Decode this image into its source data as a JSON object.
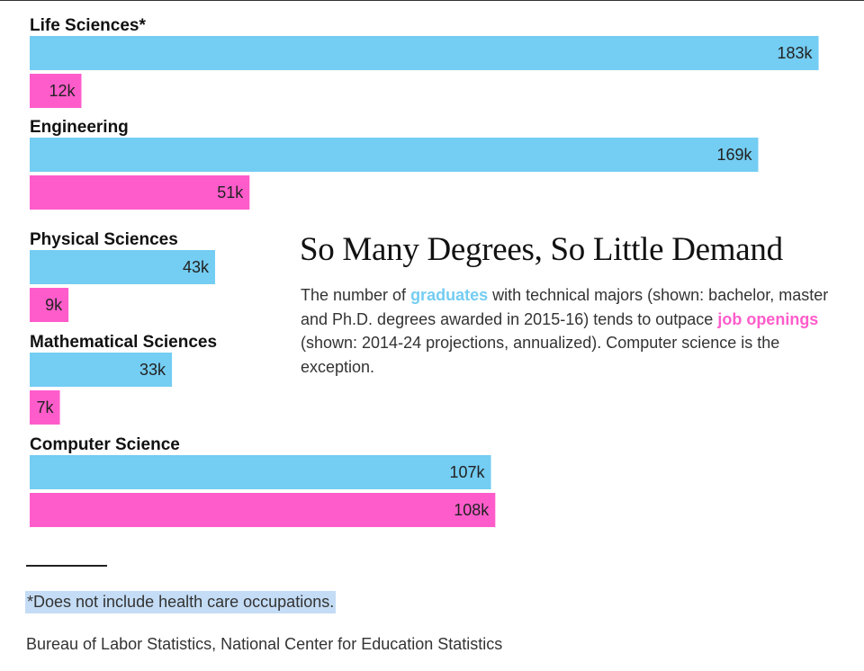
{
  "chart_data": {
    "type": "bar",
    "orientation": "horizontal",
    "categories": [
      "Life Sciences*",
      "Engineering",
      "Physical Sciences",
      "Mathematical Sciences",
      "Computer Science"
    ],
    "series": [
      {
        "name": "graduates",
        "color": "#74cdf2",
        "values": [
          183,
          169,
          43,
          33,
          107
        ],
        "labels": [
          "183k",
          "169k",
          "43k",
          "33k",
          "107k"
        ]
      },
      {
        "name": "job openings",
        "color": "#ff5ccb",
        "values": [
          12,
          51,
          9,
          7,
          108
        ],
        "labels": [
          "12k",
          "51k",
          "9k",
          "7k",
          "108k"
        ]
      }
    ],
    "title": "So Many Degrees, So Little Demand",
    "subtitle": {
      "part1": "The number of ",
      "graduates": "graduates",
      "part2": " with technical majors (shown: bachelor, master and Ph.D. degrees awarded in 2015-16) tends to outpace ",
      "job_openings": "job openings",
      "part3": " (shown: 2014-24 projections, annualized). Computer science is the exception."
    },
    "footnote": "*Does not include health care occupations.",
    "source": "Bureau of Labor Statistics, National Center for Education Statistics",
    "grid": false,
    "legend": "inline in subtitle text"
  }
}
